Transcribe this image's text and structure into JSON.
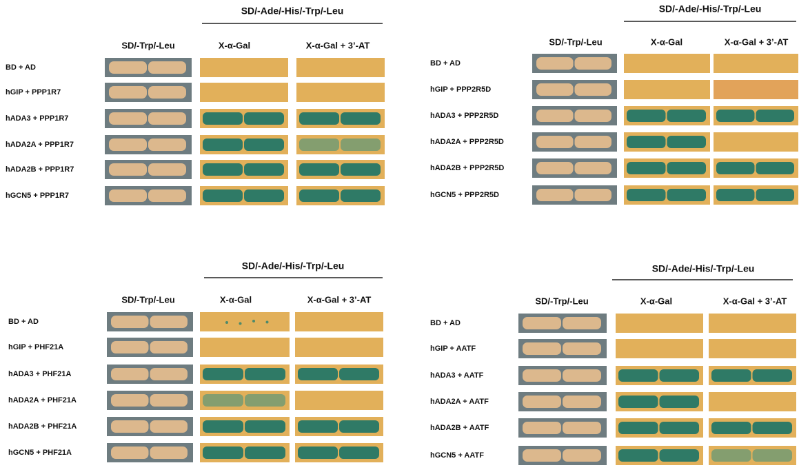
{
  "panels": [
    {
      "title": "SD/-Ade/-His/-Trp/-Leu",
      "columns": [
        "SD/-Trp/-Leu",
        "X-α-Gal",
        "X-α-Gal + 3’-AT"
      ],
      "rows": [
        "BD + AD",
        "hGIP + PPP1R7",
        "hADA3 + PPP1R7",
        "hADA2A + PPP1R7",
        "hADA2B + PPP1R7",
        "hGCN5 + PPP1R7"
      ]
    },
    {
      "title": "SD/-Ade/-His/-Trp/-Leu",
      "columns": [
        "SD/-Trp/-Leu",
        "X-α-Gal",
        "X-α-Gal + 3’-AT"
      ],
      "rows": [
        "BD + AD",
        "hGIP + PPP2R5D",
        "hADA3 + PPP2R5D",
        "hADA2A + PPP2R5D",
        "hADA2B + PPP2R5D",
        "hGCN5 + PPP2R5D"
      ]
    },
    {
      "title": "SD/-Ade/-His/-Trp/-Leu",
      "columns": [
        "SD/-Trp/-Leu",
        "X-α-Gal",
        "X-α-Gal + 3’-AT"
      ],
      "rows": [
        "BD + AD",
        "hGIP + PHF21A",
        "hADA3 + PHF21A",
        "hADA2A + PHF21A",
        "hADA2B + PHF21A",
        "hGCN5 + PHF21A"
      ]
    },
    {
      "title": "SD/-Ade/-His/-Trp/-Leu",
      "columns": [
        "SD/-Trp/-Leu",
        "X-α-Gal",
        "X-α-Gal + 3’-AT"
      ],
      "rows": [
        "BD + AD",
        "hGIP + AATF",
        "hADA3 + AATF",
        "hADA2A + AATF",
        "hADA2B + AATF",
        "hGCN5 + AATF"
      ]
    }
  ]
}
